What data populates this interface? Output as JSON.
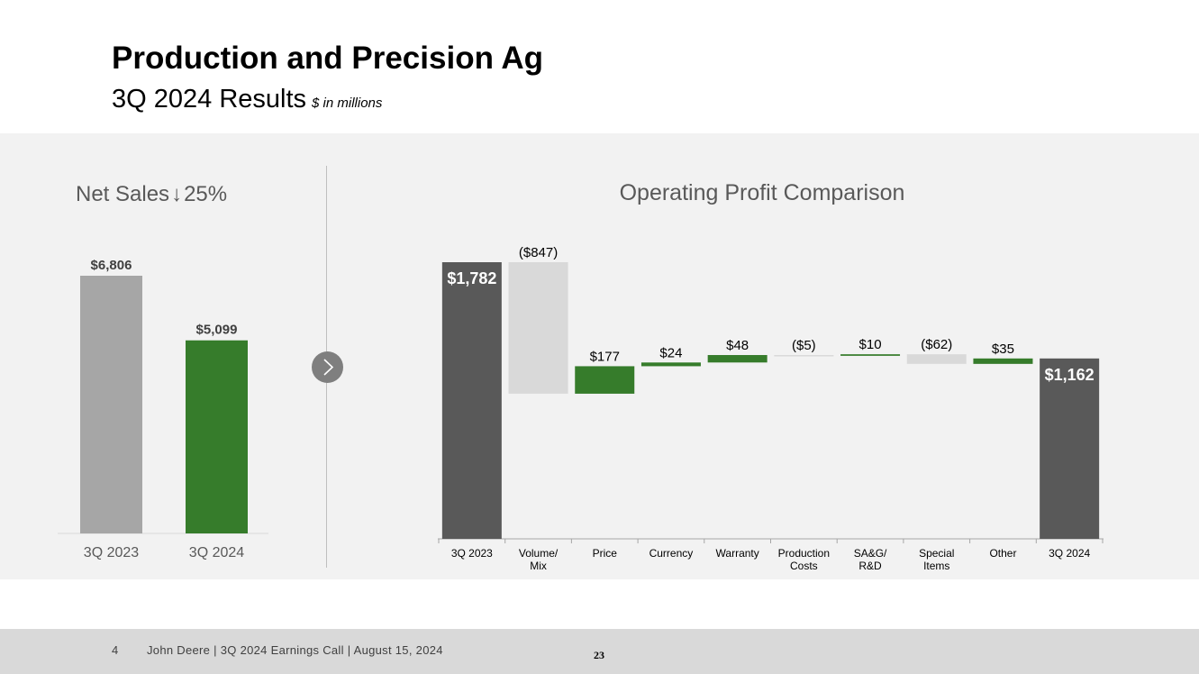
{
  "header": {
    "title": "Production and Precision Ag",
    "subtitle": "3Q 2024 Results",
    "unit_note": "$ in millions"
  },
  "net_sales": {
    "label": "Net Sales",
    "arrow": "↓",
    "change": "25%"
  },
  "operating_profit": {
    "title": "Operating Profit Comparison"
  },
  "chart_data": [
    {
      "type": "bar",
      "title": "Net Sales ↓ 25%",
      "categories": [
        "3Q 2023",
        "3Q 2024"
      ],
      "values": [
        6806,
        5099
      ],
      "labels": [
        "$6,806",
        "$5,099"
      ],
      "colors": [
        "#a6a6a6",
        "#367c2b"
      ],
      "ylim": [
        0,
        7500
      ],
      "xlabel": "",
      "ylabel": ""
    },
    {
      "type": "waterfall",
      "title": "Operating Profit Comparison",
      "categories": [
        "3Q 2023",
        "Volume/\nMix",
        "Price",
        "Currency",
        "Warranty",
        "Production\nCosts",
        "SA&G/\nR&D",
        "Special\nItems",
        "Other",
        "3Q 2024"
      ],
      "values": [
        1782,
        -847,
        177,
        24,
        48,
        -5,
        10,
        -62,
        35,
        1162
      ],
      "labels": [
        "$1,782",
        "($847)",
        "$177",
        "$24",
        "$48",
        "($5)",
        "$10",
        "($62)",
        "$35",
        "$1,162"
      ],
      "kinds": [
        "total",
        "delta",
        "delta",
        "delta",
        "delta",
        "delta",
        "delta",
        "delta",
        "delta",
        "total"
      ],
      "colors": {
        "total": "#595959",
        "increase": "#367c2b",
        "decrease": "#d9d9d9"
      },
      "ylim": [
        0,
        1900
      ]
    }
  ],
  "footer": {
    "page_number": "4",
    "text": "John Deere | 3Q 2024 Earnings Call | August 15, 2024",
    "slide_number": "23"
  },
  "icons": {
    "divider_arrow": "chevron-right-icon"
  }
}
